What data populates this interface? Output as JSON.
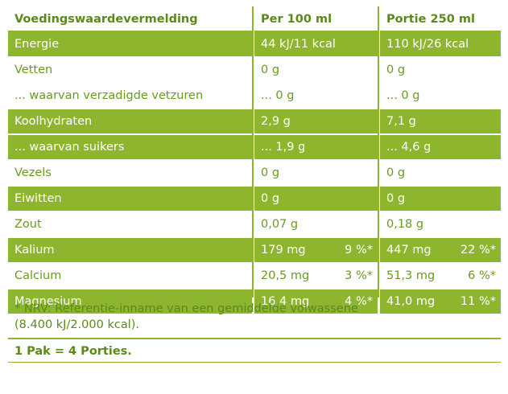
{
  "header": {
    "col1": "Voedingswaardevermelding",
    "col2": "Per 100 ml",
    "col3": "Portie 250 ml"
  },
  "rows": [
    {
      "label": "Energie",
      "per100": "44 kJ/11 kcal",
      "per100_pct": "",
      "portie": "110 kJ/26 kcal",
      "portie_pct": "",
      "style": "green"
    },
    {
      "label": "Vetten",
      "per100": "0 g",
      "per100_pct": "",
      "portie": "0 g",
      "portie_pct": "",
      "style": "white"
    },
    {
      "label": "... waarvan verzadigde vetzuren",
      "per100": "... 0 g",
      "per100_pct": "",
      "portie": "... 0 g",
      "portie_pct": "",
      "style": "white"
    },
    {
      "label": "Koolhydraten",
      "per100": "2,9 g",
      "per100_pct": "",
      "portie": "7,1 g",
      "portie_pct": "",
      "style": "green"
    },
    {
      "label": "... waarvan suikers",
      "per100": "... 1,9 g",
      "per100_pct": "",
      "portie": "... 4,6 g",
      "portie_pct": "",
      "style": "green"
    },
    {
      "label": "Vezels",
      "per100": "0 g",
      "per100_pct": "",
      "portie": "0 g",
      "portie_pct": "",
      "style": "white"
    },
    {
      "label": "Eiwitten",
      "per100": "0 g",
      "per100_pct": "",
      "portie": "0 g",
      "portie_pct": "",
      "style": "green"
    },
    {
      "label": "Zout",
      "per100": "0,07 g",
      "per100_pct": "",
      "portie": "0,18 g",
      "portie_pct": "",
      "style": "white"
    },
    {
      "label": "Kalium",
      "per100": "179 mg",
      "per100_pct": "9 %*",
      "portie": "447 mg",
      "portie_pct": "22 %*",
      "style": "green"
    },
    {
      "label": "Calcium",
      "per100": "20,5 mg",
      "per100_pct": "3 %*",
      "portie": "51,3 mg",
      "portie_pct": "6 %*",
      "style": "white"
    },
    {
      "label": "Magnesium",
      "per100": "16,4 mg",
      "per100_pct": "4 %*",
      "portie": "41,0 mg",
      "portie_pct": "11 %*",
      "style": "green"
    }
  ],
  "footnote": {
    "line1": "* NRV: Referentie-inname van een gemiddelde volwassene",
    "line2": "(8.400 kJ/2.000 kcal)."
  },
  "pak": "1 Pak = 4 Porties.",
  "colors": {
    "green": "#8db52d",
    "text_green": "#5a8a1a"
  }
}
